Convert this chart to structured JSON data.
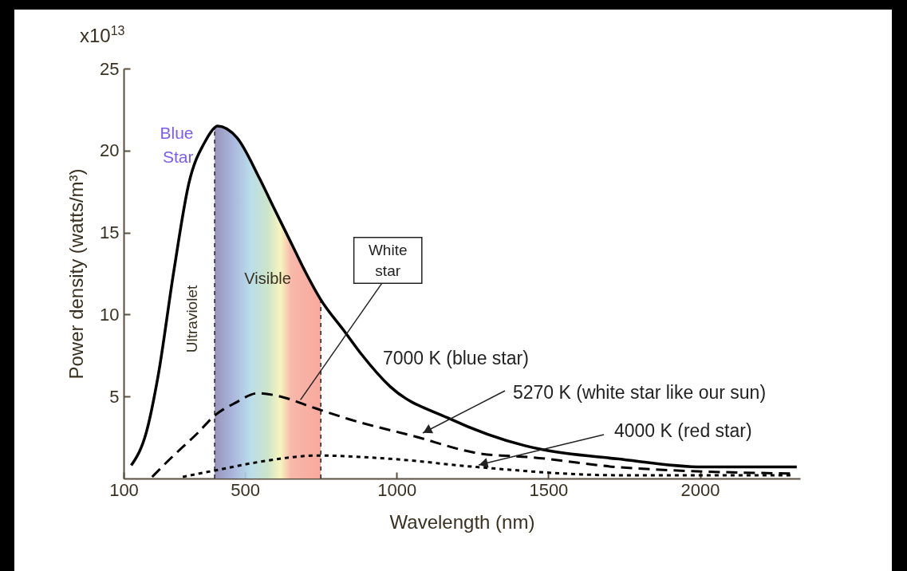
{
  "chart_data": {
    "type": "line",
    "xlabel": "Wavelength (nm)",
    "ylabel": "Power density (watts/m³)",
    "xlim": [
      100,
      2330
    ],
    "xticks": [
      100,
      500,
      1000,
      1500,
      2000
    ],
    "ylim": [
      0,
      25
    ],
    "yticks": [
      5,
      10,
      15,
      20,
      25
    ],
    "series": [
      {
        "name": "7000 K (blue star)",
        "color": "#000000",
        "line_style": "solid",
        "x": [
          125,
          176,
          214,
          265,
          315,
          370,
          400,
          409,
          473,
          548,
          598,
          654,
          702,
          750,
          827,
          883,
          979,
          1168,
          1423,
          1471,
          1726,
          2011,
          2319
        ],
        "values": [
          0.8,
          2.9,
          6.3,
          12.6,
          18,
          20.6,
          21.4,
          21.5,
          20.8,
          18.3,
          16.4,
          14.3,
          12.5,
          10.9,
          9.0,
          7.6,
          5.6,
          3.7,
          2.0,
          1.8,
          1.2,
          0.7,
          0.7
        ]
      },
      {
        "name": "5270 K (white star like our sun)",
        "color": "#000000",
        "line_style": "dashed",
        "x": [
          194,
          259,
          340,
          404,
          467,
          543,
          617,
          713,
          846,
          1053,
          1282,
          1441,
          1726,
          2298
        ],
        "values": [
          0.1,
          1.3,
          2.7,
          3.9,
          4.6,
          5.2,
          5.0,
          4.4,
          3.6,
          2.6,
          1.5,
          1.3,
          0.7,
          0.3
        ]
      },
      {
        "name": "4000 K (red star)",
        "color": "#000000",
        "line_style": "dotted",
        "x": [
          295,
          404,
          543,
          742,
          979,
          1263,
          1726,
          2298
        ],
        "values": [
          0.1,
          0.5,
          1.0,
          1.4,
          1.2,
          0.7,
          0.2,
          0.2
        ]
      }
    ],
    "ref_lines": [
      {
        "axis": "x",
        "value": 400,
        "label": "Ultraviolet",
        "line_style": "dotted"
      },
      {
        "axis": "x",
        "value": 750,
        "line_style": "dotted"
      }
    ],
    "annotations": [
      "x10$^{13}$",
      "Visible",
      {
        "text": "Blue Star",
        "x": 409,
        "y": 21.5
      },
      {
        "text": "White star",
        "x": 683,
        "y": 4.8
      }
    ],
    "grid": false
  }
}
